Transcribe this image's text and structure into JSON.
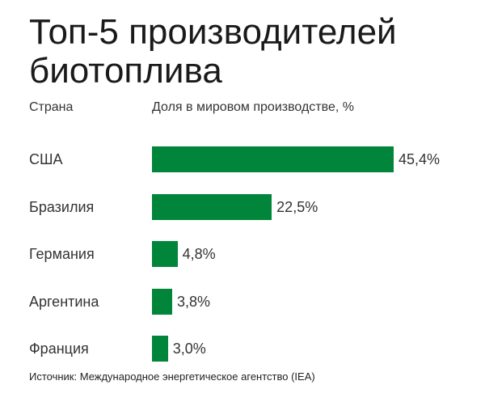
{
  "chart_data": {
    "type": "bar",
    "orientation": "horizontal",
    "title": "Топ-5 производителей биотоплива",
    "xlabel": "Доля в мировом производстве, %",
    "ylabel": "Страна",
    "categories": [
      "США",
      "Бразилия",
      "Германия",
      "Аргентина",
      "Франция"
    ],
    "values": [
      45.4,
      22.5,
      4.8,
      3.8,
      3.0
    ],
    "value_labels": [
      "45,4%",
      "22,5%",
      "4,8%",
      "3,8%",
      "3,0%"
    ],
    "xlim": [
      0,
      45.4
    ],
    "grid": false,
    "bar_color": "#00853a",
    "source": "Источник: Международное энергетическое агентство (IEA)"
  }
}
